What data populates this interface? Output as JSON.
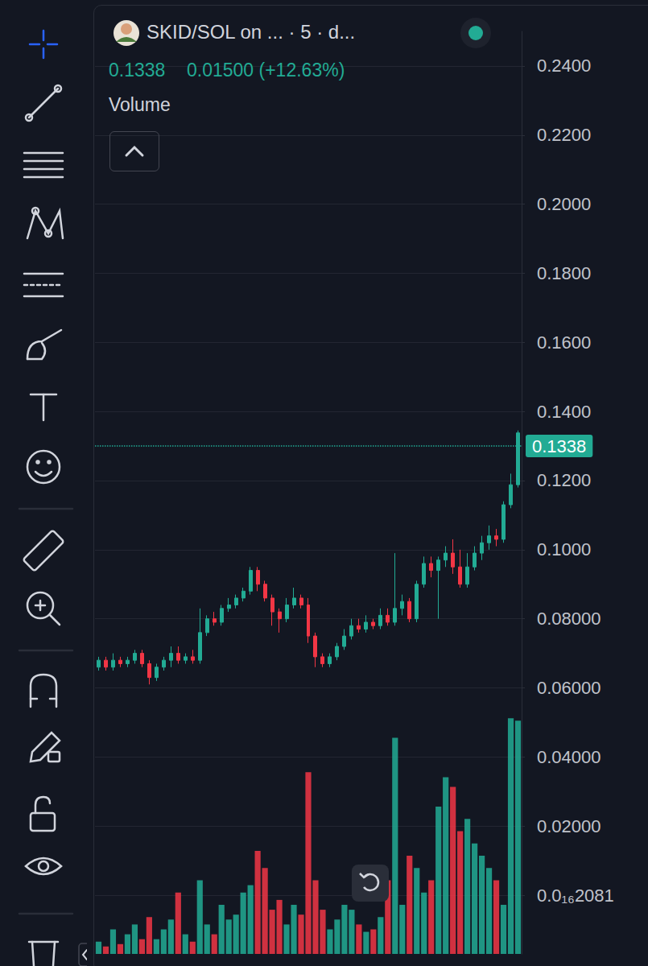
{
  "chart_data": {
    "type": "candlestick",
    "title": "SKID/SOL on ... · 5 · d...",
    "annotations": [
      "0.1338",
      "0.01500 (+12.63%)",
      "Volume"
    ],
    "categories": [
      null,
      null,
      null,
      null,
      null,
      null,
      null,
      null,
      null,
      null,
      null,
      null,
      null,
      null,
      null,
      null,
      null,
      null,
      null,
      null,
      null,
      null,
      null,
      null,
      null,
      null,
      null,
      null,
      null,
      null,
      null,
      null,
      null,
      null,
      null,
      null,
      null,
      null,
      null,
      null,
      null,
      null,
      null,
      null,
      null,
      null,
      null,
      null,
      null,
      null,
      null,
      null,
      null,
      null,
      null,
      null,
      null,
      null,
      null
    ],
    "open": [
      0.066,
      0.068,
      0.066,
      0.068,
      0.067,
      0.068,
      0.07,
      0.067,
      0.063,
      0.066,
      0.068,
      0.07,
      0.068,
      0.069,
      0.068,
      0.076,
      0.08,
      0.079,
      0.083,
      0.084,
      0.086,
      0.088,
      0.094,
      0.09,
      0.086,
      0.082,
      0.08,
      0.084,
      0.086,
      0.084,
      0.075,
      0.069,
      0.067,
      0.069,
      0.072,
      0.075,
      0.078,
      0.077,
      0.079,
      0.078,
      0.081,
      0.079,
      0.083,
      0.085,
      0.08,
      0.09,
      0.096,
      0.094,
      0.097,
      0.099,
      0.095,
      0.09,
      0.095,
      0.099,
      0.102,
      0.104,
      0.103,
      0.113,
      0.1188
    ],
    "close": [
      0.068,
      0.066,
      0.068,
      0.067,
      0.068,
      0.07,
      0.067,
      0.063,
      0.066,
      0.068,
      0.07,
      0.068,
      0.069,
      0.068,
      0.076,
      0.08,
      0.079,
      0.083,
      0.084,
      0.086,
      0.088,
      0.094,
      0.09,
      0.086,
      0.082,
      0.08,
      0.084,
      0.086,
      0.084,
      0.075,
      0.069,
      0.067,
      0.069,
      0.072,
      0.075,
      0.078,
      0.077,
      0.079,
      0.078,
      0.081,
      0.079,
      0.083,
      0.085,
      0.08,
      0.09,
      0.096,
      0.094,
      0.097,
      0.099,
      0.095,
      0.09,
      0.095,
      0.099,
      0.102,
      0.104,
      0.103,
      0.113,
      0.1188,
      0.1338
    ],
    "low": [
      0.065,
      0.065,
      0.065,
      0.066,
      0.066,
      0.067,
      0.066,
      0.061,
      0.062,
      0.065,
      0.066,
      0.067,
      0.067,
      0.067,
      0.067,
      0.075,
      0.078,
      0.078,
      0.082,
      0.083,
      0.085,
      0.087,
      0.088,
      0.085,
      0.078,
      0.076,
      0.079,
      0.083,
      0.083,
      0.073,
      0.066,
      0.066,
      0.066,
      0.068,
      0.071,
      0.074,
      0.076,
      0.076,
      0.077,
      0.077,
      0.078,
      0.078,
      0.081,
      0.079,
      0.079,
      0.089,
      0.092,
      0.08,
      0.095,
      0.093,
      0.089,
      0.089,
      0.094,
      0.097,
      0.1,
      0.101,
      0.102,
      0.112,
      0.118
    ],
    "high": [
      0.069,
      0.069,
      0.07,
      0.069,
      0.069,
      0.071,
      0.071,
      0.068,
      0.067,
      0.069,
      0.072,
      0.072,
      0.07,
      0.071,
      0.083,
      0.081,
      0.082,
      0.084,
      0.086,
      0.087,
      0.089,
      0.095,
      0.095,
      0.091,
      0.087,
      0.083,
      0.086,
      0.089,
      0.087,
      0.086,
      0.076,
      0.07,
      0.07,
      0.073,
      0.077,
      0.08,
      0.08,
      0.081,
      0.08,
      0.083,
      0.083,
      0.099,
      0.087,
      0.086,
      0.091,
      0.098,
      0.098,
      0.098,
      0.101,
      0.103,
      0.1,
      0.099,
      0.101,
      0.104,
      0.107,
      0.106,
      0.114,
      0.122,
      0.1345
    ],
    "volume": [
      5,
      3,
      10,
      4,
      8,
      12,
      6,
      15,
      6,
      10,
      14,
      25,
      8,
      5,
      30,
      12,
      8,
      20,
      14,
      16,
      25,
      28,
      42,
      35,
      18,
      22,
      12,
      20,
      16,
      74,
      30,
      18,
      10,
      14,
      20,
      18,
      12,
      9,
      10,
      15,
      30,
      88,
      20,
      40,
      35,
      25,
      30,
      60,
      72,
      68,
      50,
      55,
      45,
      40,
      35,
      30,
      20,
      96,
      95
    ],
    "ylim": [
      -0.017,
      0.25
    ],
    "yticks": [
      {
        "value": 2.081e-17,
        "label": "0.0₁₆2081"
      },
      {
        "value": 0.02,
        "label": "0.02000"
      },
      {
        "value": 0.04,
        "label": "0.04000"
      },
      {
        "value": 0.06,
        "label": "0.06000"
      },
      {
        "value": 0.08,
        "label": "0.08000"
      },
      {
        "value": 0.1,
        "label": "0.1000"
      },
      {
        "value": 0.12,
        "label": "0.1200"
      },
      {
        "value": 0.14,
        "label": "0.1400"
      },
      {
        "value": 0.16,
        "label": "0.1600"
      },
      {
        "value": 0.18,
        "label": "0.1800"
      },
      {
        "value": 0.2,
        "label": "0.2000"
      },
      {
        "value": 0.22,
        "label": "0.2200"
      },
      {
        "value": 0.24,
        "label": "0.2400"
      }
    ],
    "y2lim": [
      0,
      100
    ],
    "grid": true,
    "tick_labels": "y"
  }
}
